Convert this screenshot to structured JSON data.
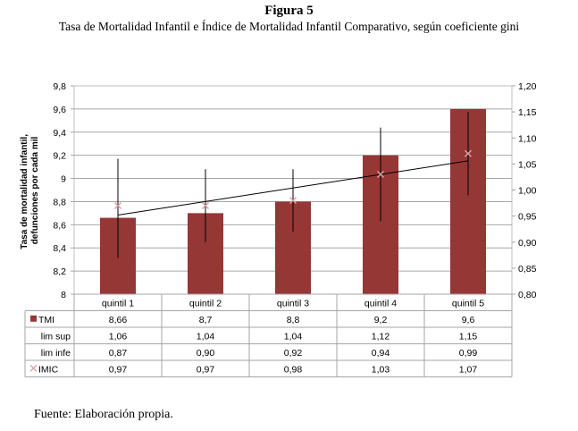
{
  "figure": {
    "label": "Figura 5",
    "title": "Tasa de Mortalidad Infantil e Índice de Mortalidad Infantil Comparativo, según coeficiente gini",
    "source": "Fuente: Elaboración propia."
  },
  "chart_data": {
    "type": "bar",
    "categories": [
      "quintil 1",
      "quintil 2",
      "quintil 3",
      "quintil 4",
      "quintil 5"
    ],
    "ylabel_lines": [
      "Tasa de mortalidad infantil,",
      "defunciones por cada mil"
    ],
    "ylim": [
      8,
      9.8
    ],
    "yticks": [
      "8",
      "8,2",
      "8,4",
      "8,6",
      "8,8",
      "9",
      "9,2",
      "9,4",
      "9,6",
      "9,8"
    ],
    "y2lim": [
      0.8,
      1.2
    ],
    "y2ticks": [
      "0,80",
      "0,85",
      "0,90",
      "0,95",
      "1,00",
      "1,05",
      "1,10",
      "1,15",
      "1,20"
    ],
    "grid": true,
    "series": [
      {
        "name": "TMI",
        "axis": "left",
        "kind": "bar",
        "values": [
          8.66,
          8.7,
          8.8,
          9.2,
          9.6
        ],
        "labels": [
          "8,66",
          "8,7",
          "8,8",
          "9,2",
          "9,6"
        ],
        "color": "#953735"
      },
      {
        "name": "lim sup",
        "axis": "right",
        "kind": "error-high",
        "values": [
          1.06,
          1.04,
          1.04,
          1.12,
          1.15
        ],
        "labels": [
          "1,06",
          "1,04",
          "1,04",
          "1,12",
          "1,15"
        ]
      },
      {
        "name": "lim infe",
        "axis": "right",
        "kind": "error-low",
        "values": [
          0.87,
          0.9,
          0.92,
          0.94,
          0.99
        ],
        "labels": [
          "0,87",
          "0,90",
          "0,92",
          "0,94",
          "0,99"
        ]
      },
      {
        "name": "IMIC",
        "axis": "right",
        "kind": "marker",
        "values": [
          0.97,
          0.97,
          0.98,
          1.03,
          1.07
        ],
        "labels": [
          "0,97",
          "0,97",
          "0,98",
          "1,03",
          "1,07"
        ],
        "color": "#d9a0a6"
      }
    ],
    "trendline": {
      "series": "IMIC",
      "type": "linear",
      "color": "#000000"
    }
  }
}
